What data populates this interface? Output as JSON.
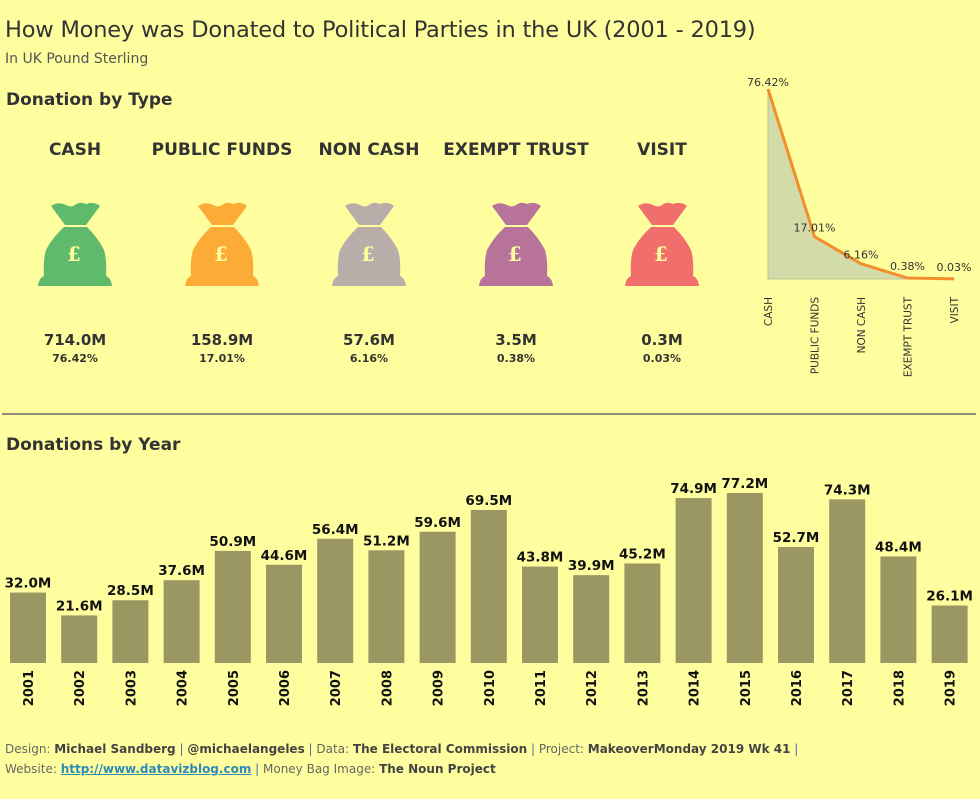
{
  "header": {
    "title": "How Money was Donated to Political Parties in the UK (2001 - 2019)",
    "subtitle": "In UK Pound Sterling"
  },
  "colors": {
    "background": "#fffe9f",
    "bar": "#9b9762",
    "pareto_line": "#f28e2b",
    "pareto_area": "#d3dba8",
    "text": "#333333"
  },
  "donation_by_type": {
    "heading": "Donation by Type",
    "currency_symbol": "£",
    "icon": "money-bag-icon",
    "items": [
      {
        "name": "CASH",
        "amount": "714.0M",
        "pct": "76.42%",
        "color": "#5fba6b"
      },
      {
        "name": "PUBLIC FUNDS",
        "amount": "158.9M",
        "pct": "17.01%",
        "color": "#fdab37"
      },
      {
        "name": "NON CASH",
        "amount": "57.6M",
        "pct": "6.16%",
        "color": "#b8ada8"
      },
      {
        "name": "EXEMPT TRUST",
        "amount": "3.5M",
        "pct": "0.38%",
        "color": "#b8739a"
      },
      {
        "name": "VISIT",
        "amount": "0.3M",
        "pct": "0.03%",
        "color": "#f06e6c"
      }
    ]
  },
  "donations_by_year": {
    "heading": "Donations by Year"
  },
  "chart_data": [
    {
      "type": "area",
      "title": "",
      "categories": [
        "CASH",
        "PUBLIC FUNDS",
        "NON CASH",
        "EXEMPT TRUST",
        "VISIT"
      ],
      "values": [
        76.42,
        17.01,
        6.16,
        0.38,
        0.03
      ],
      "labels": [
        "76.42%",
        "17.01%",
        "6.16%",
        "0.38%",
        "0.03%"
      ],
      "unit": "%",
      "ylim": [
        0,
        76.42
      ],
      "xlabel": "",
      "ylabel": "",
      "grid": false,
      "legend": "none"
    },
    {
      "type": "bar",
      "title": "Donations by Year",
      "categories": [
        "2001",
        "2002",
        "2003",
        "2004",
        "2005",
        "2006",
        "2007",
        "2008",
        "2009",
        "2010",
        "2011",
        "2012",
        "2013",
        "2014",
        "2015",
        "2016",
        "2017",
        "2018",
        "2019"
      ],
      "values": [
        32.0,
        21.6,
        28.5,
        37.6,
        50.9,
        44.6,
        56.4,
        51.2,
        59.6,
        69.5,
        43.8,
        39.9,
        45.2,
        74.9,
        77.2,
        52.7,
        74.3,
        48.4,
        26.1
      ],
      "labels": [
        "32.0M",
        "21.6M",
        "28.5M",
        "37.6M",
        "50.9M",
        "44.6M",
        "56.4M",
        "51.2M",
        "59.6M",
        "69.5M",
        "43.8M",
        "39.9M",
        "45.2M",
        "74.9M",
        "77.2M",
        "52.7M",
        "74.3M",
        "48.4M",
        "26.1M"
      ],
      "unit": "M GBP",
      "ylim": [
        0,
        77.2
      ],
      "xlabel": "",
      "ylabel": "",
      "grid": false,
      "legend": "none"
    }
  ],
  "footer": {
    "line1": [
      {
        "text": "Design: ",
        "style": "plain"
      },
      {
        "text": "Michael Sandberg",
        "style": "bold"
      },
      {
        "text": " | ",
        "style": "sep"
      },
      {
        "text": "@michaelangeles",
        "style": "bold"
      },
      {
        "text": " | ",
        "style": "sep"
      },
      {
        "text": "Data: ",
        "style": "plain"
      },
      {
        "text": "The Electoral Commission",
        "style": "bold"
      },
      {
        "text": " | ",
        "style": "sep"
      },
      {
        "text": "Project: ",
        "style": "plain"
      },
      {
        "text": "MakeoverMonday 2019 Wk 41",
        "style": "bold"
      },
      {
        "text": " |",
        "style": "sep"
      }
    ],
    "website_label": "Website: ",
    "website_link": "http://www.datavizblog.com",
    "sep": " | ",
    "image_label": "Money Bag Image: ",
    "image_source": "The Noun Project"
  }
}
